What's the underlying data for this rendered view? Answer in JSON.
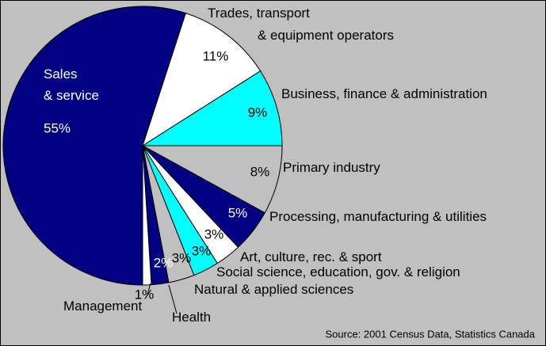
{
  "chart_data": {
    "type": "pie",
    "categories": [
      "Sales\n& service",
      "Trades, transport\n& equipment operators",
      "Business, finance & administration",
      "Primary industry",
      "Processing, manufacturing & utilities",
      "Art, culture, rec. & sport",
      "Social science, education, gov. & religion",
      "Natural & applied sciences",
      "Health",
      "Management"
    ],
    "values": [
      55,
      11,
      9,
      8,
      5,
      3,
      3,
      3,
      2,
      1
    ],
    "value_labels": [
      "55%",
      "11%",
      "9%",
      "8%",
      "5%",
      "3%",
      "3%",
      "3%",
      "2%",
      "1%"
    ],
    "colors": [
      "#000080",
      "#ffffff",
      "#00ffff",
      "#c0c0c0",
      "#000080",
      "#ffffff",
      "#00ffff",
      "#c0c0c0",
      "#000080",
      "#ffffff"
    ],
    "source": "Source: 2001 Census  Data, Statistics Canada"
  }
}
